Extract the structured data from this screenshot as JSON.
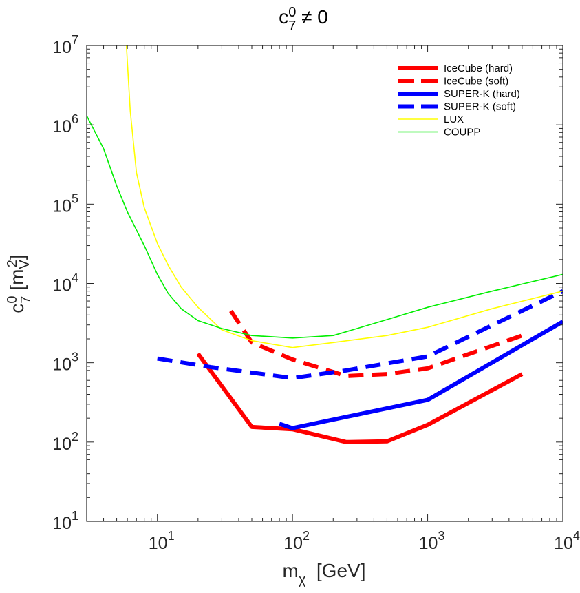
{
  "chart_data": {
    "type": "line",
    "title": {
      "base": "c",
      "sub": "7",
      "sup": "0",
      "rest": " ≠ 0"
    },
    "xlabel": {
      "base": "m",
      "sub": "χ",
      "rest": "  [GeV]"
    },
    "ylabel": {
      "base": "c",
      "sub": "7",
      "sup": "0",
      "mid": " [m",
      "msub": "V",
      "msup": "2",
      "end": "]"
    },
    "xscale": "log",
    "yscale": "log",
    "xlim": [
      3,
      10000
    ],
    "ylim": [
      10,
      10000000
    ],
    "xticks": [
      {
        "base": "10",
        "exp": "1",
        "value": 10
      },
      {
        "base": "10",
        "exp": "2",
        "value": 100
      },
      {
        "base": "10",
        "exp": "3",
        "value": 1000
      },
      {
        "base": "10",
        "exp": "4",
        "value": 10000
      }
    ],
    "yticks": [
      {
        "base": "10",
        "exp": "1",
        "value": 10
      },
      {
        "base": "10",
        "exp": "2",
        "value": 100
      },
      {
        "base": "10",
        "exp": "3",
        "value": 1000
      },
      {
        "base": "10",
        "exp": "4",
        "value": 10000
      },
      {
        "base": "10",
        "exp": "5",
        "value": 100000
      },
      {
        "base": "10",
        "exp": "6",
        "value": 1000000
      },
      {
        "base": "10",
        "exp": "7",
        "value": 10000000
      }
    ],
    "grid": false,
    "legend_position": "top-right",
    "series": [
      {
        "name": "IceCube (hard)",
        "color": "#ff0000",
        "style": "solid",
        "weight": "thick",
        "x": [
          20,
          50,
          100,
          250,
          500,
          1000,
          5000
        ],
        "y": [
          1300,
          155,
          145,
          100,
          102,
          165,
          720
        ]
      },
      {
        "name": "IceCube (soft)",
        "color": "#ff0000",
        "style": "dashed",
        "weight": "thick",
        "x": [
          35,
          50,
          100,
          250,
          500,
          1000,
          5000
        ],
        "y": [
          4500,
          1800,
          1100,
          680,
          720,
          850,
          2200
        ]
      },
      {
        "name": "SUPER-K (hard)",
        "color": "#0000ff",
        "style": "solid",
        "weight": "thick",
        "x": [
          80,
          100,
          1000,
          10000
        ],
        "y": [
          170,
          150,
          340,
          3300
        ]
      },
      {
        "name": "SUPER-K (soft)",
        "color": "#0000ff",
        "style": "dashed",
        "weight": "thick",
        "x": [
          10,
          25,
          100,
          250,
          1000,
          10000
        ],
        "y": [
          1130,
          880,
          640,
          800,
          1200,
          8000
        ]
      },
      {
        "name": "LUX",
        "color": "#ffff00",
        "style": "solid",
        "weight": "thin",
        "x": [
          5.9,
          6.3,
          7,
          8,
          10,
          12,
          15,
          20,
          30,
          50,
          100,
          200,
          500,
          1000,
          3000,
          10000
        ],
        "y": [
          10000000,
          1500000,
          250000,
          90000,
          32000,
          17000,
          9000,
          5000,
          2600,
          1900,
          1550,
          1800,
          2200,
          2800,
          4800,
          8000
        ]
      },
      {
        "name": "COUPP",
        "color": "#00ee00",
        "style": "solid",
        "weight": "thin",
        "x": [
          3,
          4,
          5,
          6,
          8,
          10,
          12,
          15,
          20,
          30,
          50,
          100,
          200,
          500,
          1000,
          3000,
          10000
        ],
        "y": [
          1300000,
          500000,
          170000,
          80000,
          30000,
          13000,
          7500,
          4800,
          3400,
          2700,
          2200,
          2050,
          2200,
          3500,
          5000,
          8000,
          13000
        ]
      }
    ]
  }
}
